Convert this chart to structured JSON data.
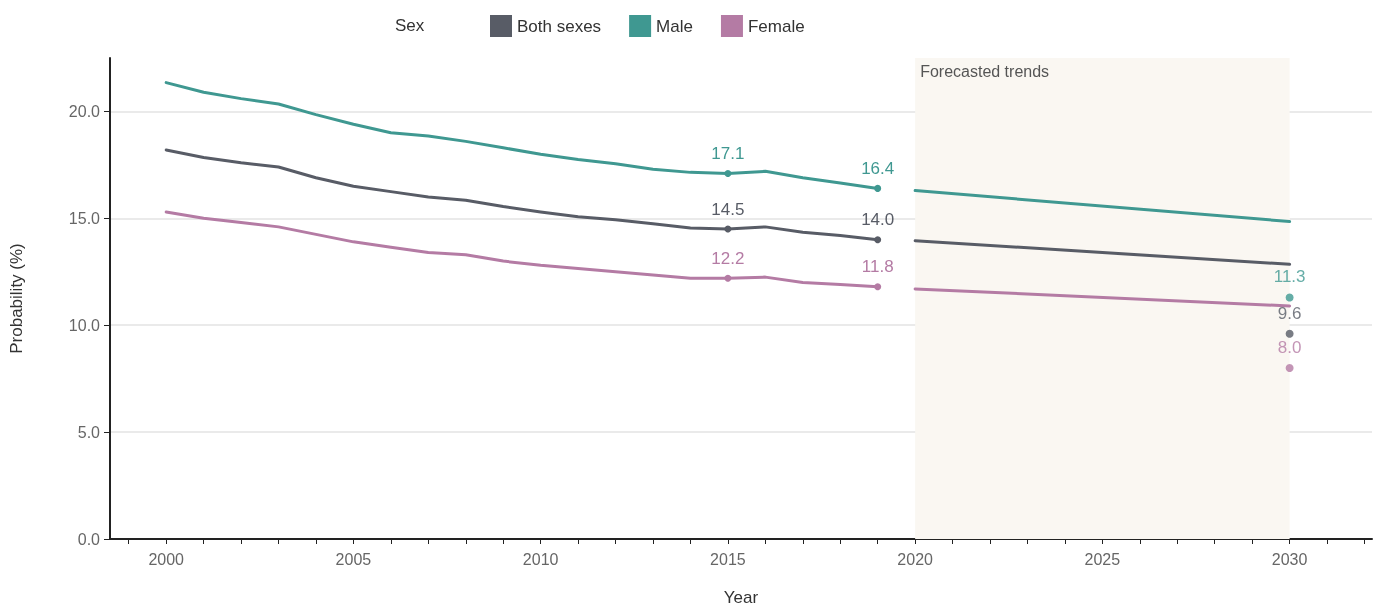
{
  "chart_data": {
    "type": "line",
    "xlabel": "Year",
    "ylabel": "Probability (%)",
    "legend_title": "Sex",
    "legend": "top",
    "xlim": [
      1998.5,
      2032.2
    ],
    "xticks": [
      {
        "value": 1999,
        "label": null
      },
      2000,
      {
        "value": 2001,
        "label": null
      },
      {
        "value": 2002,
        "label": null
      },
      {
        "value": 2003,
        "label": null
      },
      {
        "value": 2004,
        "label": null
      },
      2005,
      {
        "value": 2006,
        "label": null
      },
      {
        "value": 2007,
        "label": null
      },
      {
        "value": 2008,
        "label": null
      },
      {
        "value": 2009,
        "label": null
      },
      2010,
      {
        "value": 2011,
        "label": null
      },
      {
        "value": 2012,
        "label": null
      },
      {
        "value": 2013,
        "label": null
      },
      {
        "value": 2014,
        "label": null
      },
      2015,
      {
        "value": 2016,
        "label": null
      },
      {
        "value": 2017,
        "label": null
      },
      {
        "value": 2018,
        "label": null
      },
      {
        "value": 2019,
        "label": null
      },
      2020,
      {
        "value": 2021,
        "label": null
      },
      {
        "value": 2022,
        "label": null
      },
      {
        "value": 2023,
        "label": null
      },
      {
        "value": 2024,
        "label": null
      },
      2025,
      {
        "value": 2026,
        "label": null
      },
      {
        "value": 2027,
        "label": null
      },
      {
        "value": 2028,
        "label": null
      },
      {
        "value": 2029,
        "label": null
      },
      2030,
      {
        "value": 2031,
        "label": null
      },
      {
        "value": 2032,
        "label": null
      }
    ],
    "ylim": [
      0,
      22.5
    ],
    "yticks": [
      {
        "value": 0,
        "label": "0.0"
      },
      {
        "value": 5,
        "label": "5.0"
      },
      {
        "value": 10,
        "label": "10.0"
      },
      {
        "value": 15,
        "label": "15.0"
      },
      {
        "value": 20,
        "label": "20.0"
      }
    ],
    "grid": "y",
    "bands": [
      {
        "axis": "x",
        "from": 2020,
        "to": 2030,
        "label": "Forecasted trends",
        "color": "#faf7f2"
      }
    ],
    "series": [
      {
        "name": "Both sexes",
        "color": "#585c66",
        "x": [
          2000,
          2001,
          2002,
          2003,
          2004,
          2005,
          2006,
          2007,
          2008,
          2009,
          2010,
          2011,
          2012,
          2013,
          2014,
          2015,
          2016,
          2017,
          2018,
          2019
        ],
        "values": [
          18.2,
          17.85,
          17.6,
          17.4,
          16.9,
          16.5,
          16.25,
          16.0,
          15.85,
          15.55,
          15.3,
          15.07,
          14.93,
          14.75,
          14.55,
          14.5,
          14.6,
          14.35,
          14.2,
          14.0
        ],
        "value_labels": [
          null,
          null,
          null,
          null,
          null,
          null,
          null,
          null,
          null,
          null,
          null,
          null,
          null,
          null,
          null,
          "14.5",
          null,
          null,
          null,
          "14.0"
        ]
      },
      {
        "name": "Male",
        "color": "#3f9891",
        "x": [
          2000,
          2001,
          2002,
          2003,
          2004,
          2005,
          2006,
          2007,
          2008,
          2009,
          2010,
          2011,
          2012,
          2013,
          2014,
          2015,
          2016,
          2017,
          2018,
          2019
        ],
        "values": [
          21.35,
          20.9,
          20.6,
          20.35,
          19.85,
          19.4,
          19.0,
          18.85,
          18.6,
          18.3,
          18.0,
          17.75,
          17.55,
          17.3,
          17.15,
          17.1,
          17.2,
          16.9,
          16.65,
          16.4
        ],
        "value_labels": [
          null,
          null,
          null,
          null,
          null,
          null,
          null,
          null,
          null,
          null,
          null,
          null,
          null,
          null,
          null,
          "17.1",
          null,
          null,
          null,
          "16.4"
        ]
      },
      {
        "name": "Female",
        "color": "#b47ba4",
        "x": [
          2000,
          2001,
          2002,
          2003,
          2004,
          2005,
          2006,
          2007,
          2008,
          2009,
          2010,
          2011,
          2012,
          2013,
          2014,
          2015,
          2016,
          2017,
          2018,
          2019
        ],
        "values": [
          15.3,
          15.0,
          14.8,
          14.6,
          14.25,
          13.9,
          13.65,
          13.4,
          13.3,
          13.0,
          12.8,
          12.65,
          12.5,
          12.35,
          12.2,
          12.2,
          12.25,
          12.0,
          11.9,
          11.8
        ],
        "value_labels": [
          null,
          null,
          null,
          null,
          null,
          null,
          null,
          null,
          null,
          null,
          null,
          null,
          null,
          null,
          null,
          "12.2",
          null,
          null,
          null,
          "11.8"
        ]
      },
      {
        "color": "#585c66",
        "x": [
          2020,
          2030
        ],
        "values": [
          13.95,
          12.85
        ]
      },
      {
        "color": "#3f9891",
        "x": [
          2020,
          2030
        ],
        "values": [
          16.3,
          14.85
        ]
      },
      {
        "color": "#b47ba4",
        "x": [
          2020,
          2030
        ],
        "values": [
          11.7,
          10.9
        ]
      },
      {
        "type": "scatter",
        "marker": "circle",
        "color": "#3f9891",
        "x": [
          2030
        ],
        "values": [
          11.3
        ],
        "value_labels": [
          "11.3"
        ]
      },
      {
        "type": "scatter",
        "marker": "circle",
        "color": "#585c66",
        "x": [
          2030
        ],
        "values": [
          9.6
        ],
        "value_labels": [
          "9.6"
        ]
      },
      {
        "type": "scatter",
        "marker": "circle",
        "color": "#b47ba4",
        "x": [
          2030
        ],
        "values": [
          8.0
        ],
        "value_labels": [
          "8.0"
        ]
      }
    ]
  }
}
